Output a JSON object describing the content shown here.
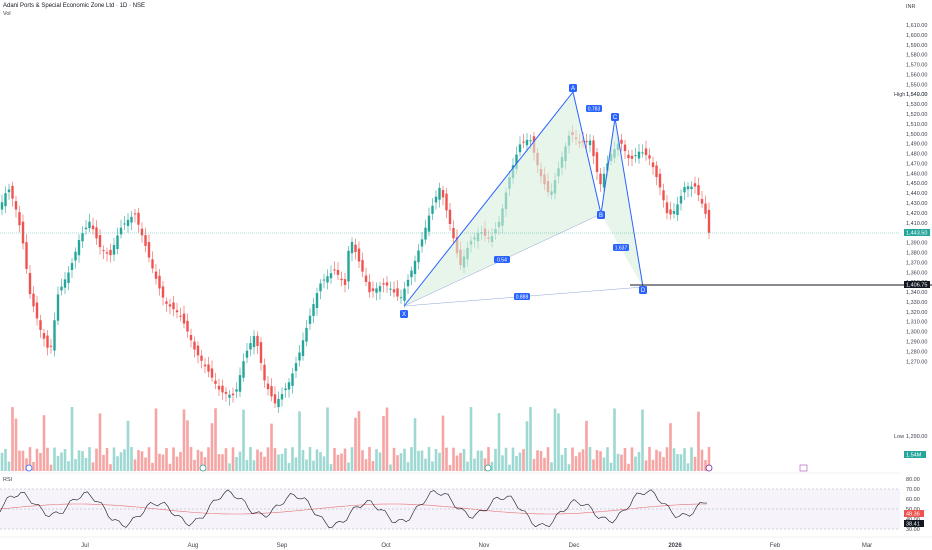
{
  "header": {
    "symbol_title": "Adani Ports & Special Economic Zone Ltd · 1D · NSE",
    "volume_label": "Vol",
    "currency": "INR"
  },
  "price_axis": {
    "labels": [
      "1,610.00",
      "1,600.00",
      "1,590.00",
      "1,580.00",
      "1,570.00",
      "1,560.00",
      "1,550.00",
      "1,540.00",
      "1,530.00",
      "1,520.00",
      "1,510.00",
      "1,500.00",
      "1,490.00",
      "1,480.00",
      "1,470.00",
      "1,460.00",
      "1,450.00",
      "1,440.00",
      "1,430.00",
      "1,420.00",
      "1,410.00",
      "1,400.00",
      "1,390.00",
      "1,380.00",
      "1,370.00",
      "1,360.00",
      "1,350.00",
      "1,340.00",
      "1,330.00",
      "1,320.00",
      "1,310.00",
      "1,300.00",
      "1,290.00",
      "1,280.00",
      "1,270.00"
    ],
    "high_label": "High",
    "high_value": "1,549.00",
    "low_label": "Low",
    "low_value": "1,290.00",
    "last_price": "1,443.50",
    "line_price": "1,406.75",
    "volume_value": "1.54M"
  },
  "rsi_axis": {
    "label": "RSI",
    "labels": [
      "80.00",
      "70.00",
      "60.00",
      "50.00",
      "40.00",
      "30.00"
    ],
    "value1": "48.36",
    "value2": "38.41"
  },
  "x_axis": {
    "labels": [
      "Jul",
      "Aug",
      "Sep",
      "Oct",
      "Nov",
      "Dec",
      "2026",
      "Feb",
      "Mar"
    ]
  },
  "pattern": {
    "points": [
      "X",
      "A",
      "B",
      "C",
      "D"
    ],
    "ratios": [
      "0.783",
      "0.54",
      "1.637",
      "0.888"
    ]
  },
  "colors": {
    "up": "#26a69a",
    "down": "#ef5350",
    "pattern": "#2962ff",
    "rsi": "#131722",
    "rsi_ma": "#e57373"
  }
}
